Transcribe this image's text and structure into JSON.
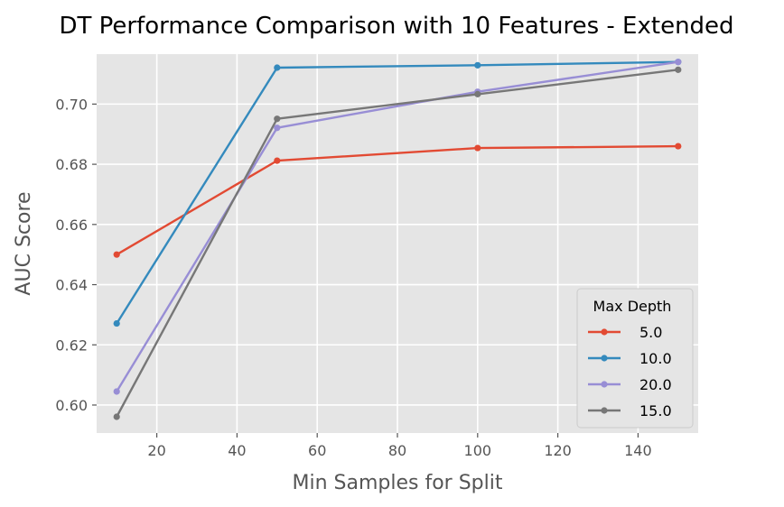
{
  "chart_data": {
    "type": "line",
    "title": "DT Performance Comparison with 10 Features - Extended",
    "xlabel": "Min Samples for Split",
    "ylabel": "AUC Score",
    "x": [
      10,
      50,
      100,
      150
    ],
    "xlim": [
      5,
      155
    ],
    "ylim": [
      0.5907,
      0.7166
    ],
    "xticks": [
      20,
      40,
      60,
      80,
      100,
      120,
      140
    ],
    "yticks": [
      0.6,
      0.62,
      0.64,
      0.66,
      0.68,
      0.7
    ],
    "xtick_labels": [
      "20",
      "40",
      "60",
      "80",
      "100",
      "120",
      "140"
    ],
    "ytick_labels": [
      "0.60",
      "0.62",
      "0.64",
      "0.66",
      "0.68",
      "0.70"
    ],
    "grid": true,
    "legend": {
      "title": "Max Depth",
      "placement": "lower-right"
    },
    "series": [
      {
        "name": "5.0",
        "color": "#E24A33",
        "values": [
          0.65,
          0.6812,
          0.6854,
          0.686
        ]
      },
      {
        "name": "10.0",
        "color": "#348ABD",
        "values": [
          0.6271,
          0.7121,
          0.7129,
          0.714
        ]
      },
      {
        "name": "20.0",
        "color": "#988ED5",
        "values": [
          0.6045,
          0.6921,
          0.7041,
          0.714
        ]
      },
      {
        "name": "15.0",
        "color": "#777777",
        "values": [
          0.5961,
          0.6951,
          0.7033,
          0.7114
        ]
      }
    ]
  }
}
